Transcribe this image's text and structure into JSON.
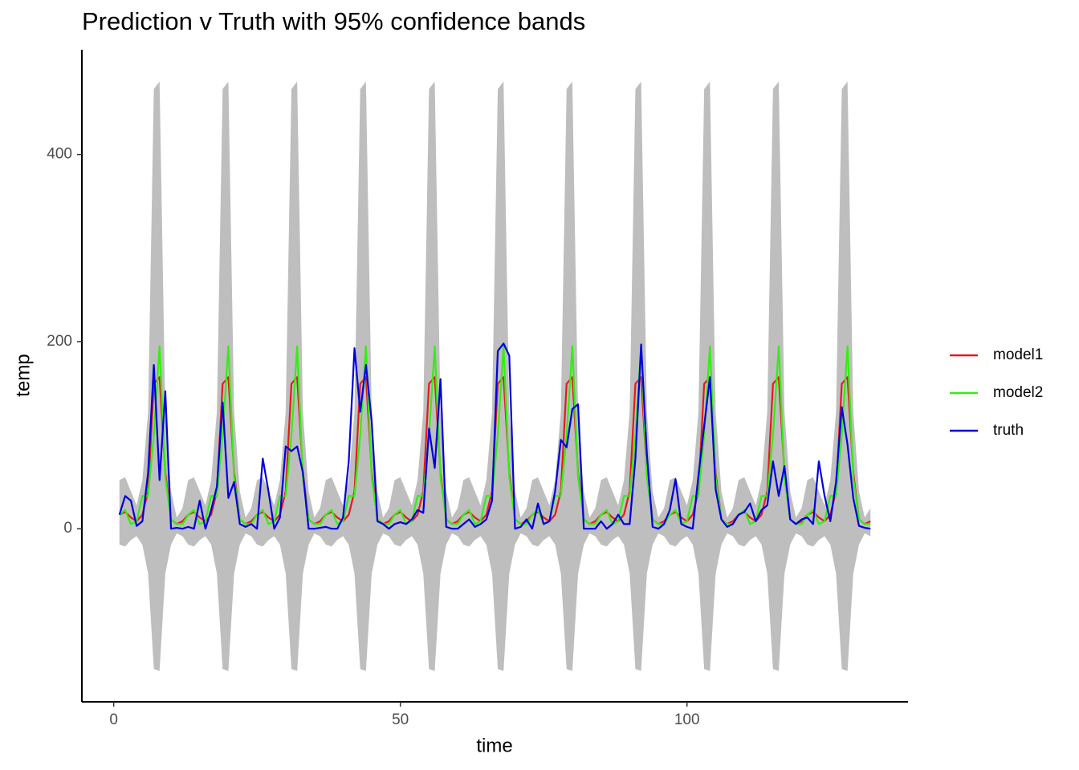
{
  "chart_data": {
    "type": "line",
    "title": "Prediction v Truth with 95% confidence bands",
    "x_label": "time",
    "y_label": "temp",
    "xlim": [
      -5.55,
      138.55
    ],
    "ylim": [
      -185,
      512
    ],
    "xticks": [
      0,
      50,
      100
    ],
    "yticks": [
      0,
      200,
      400
    ],
    "grid": false,
    "legend": "right",
    "x": [
      1,
      2,
      3,
      4,
      5,
      6,
      7,
      8,
      9,
      10,
      11,
      12,
      13,
      14,
      15,
      16,
      17,
      18,
      19,
      20,
      21,
      22,
      23,
      24,
      25,
      26,
      27,
      28,
      29,
      30,
      31,
      32,
      33,
      34,
      35,
      36,
      37,
      38,
      39,
      40,
      41,
      42,
      43,
      44,
      45,
      46,
      47,
      48,
      49,
      50,
      51,
      52,
      53,
      54,
      55,
      56,
      57,
      58,
      59,
      60,
      61,
      62,
      63,
      64,
      65,
      66,
      67,
      68,
      69,
      70,
      71,
      72,
      73,
      74,
      75,
      76,
      77,
      78,
      79,
      80,
      81,
      82,
      83,
      84,
      85,
      86,
      87,
      88,
      89,
      90,
      91,
      92,
      93,
      94,
      95,
      96,
      97,
      98,
      99,
      100,
      101,
      102,
      103,
      104,
      105,
      106,
      107,
      108,
      109,
      110,
      111,
      112,
      113,
      114,
      115,
      116,
      117,
      118,
      119,
      120,
      121,
      122,
      123,
      124,
      125,
      126,
      127,
      128,
      129,
      130,
      131,
      132
    ],
    "band": {
      "color": "#bebebe",
      "upper": [
        52,
        55,
        40,
        25,
        52,
        125,
        470,
        478,
        125,
        40,
        12,
        22,
        52,
        55,
        40,
        25,
        52,
        125,
        470,
        478,
        125,
        40,
        12,
        22,
        52,
        55,
        40,
        25,
        52,
        125,
        470,
        478,
        125,
        40,
        12,
        22,
        52,
        55,
        40,
        25,
        52,
        125,
        470,
        478,
        125,
        40,
        12,
        22,
        52,
        55,
        40,
        25,
        52,
        125,
        470,
        478,
        125,
        40,
        12,
        22,
        52,
        55,
        40,
        25,
        52,
        125,
        470,
        478,
        125,
        40,
        12,
        22,
        52,
        55,
        40,
        25,
        52,
        125,
        470,
        478,
        125,
        40,
        12,
        22,
        52,
        55,
        40,
        25,
        52,
        125,
        470,
        478,
        125,
        40,
        12,
        22,
        52,
        55,
        40,
        25,
        52,
        125,
        470,
        478,
        125,
        40,
        12,
        22,
        52,
        55,
        40,
        25,
        52,
        125,
        470,
        478,
        125,
        40,
        12,
        22,
        52,
        55,
        40,
        25,
        52,
        125,
        470,
        478,
        125,
        40,
        12,
        22
      ],
      "lower": [
        -17,
        -19,
        -12,
        -8,
        -17,
        -48,
        -150,
        -152,
        -48,
        -17,
        -5,
        -8,
        -17,
        -19,
        -12,
        -8,
        -17,
        -48,
        -150,
        -152,
        -48,
        -17,
        -5,
        -8,
        -17,
        -19,
        -12,
        -8,
        -17,
        -48,
        -150,
        -152,
        -48,
        -17,
        -5,
        -8,
        -17,
        -19,
        -12,
        -8,
        -17,
        -48,
        -150,
        -152,
        -48,
        -17,
        -5,
        -8,
        -17,
        -19,
        -12,
        -8,
        -17,
        -48,
        -150,
        -152,
        -48,
        -17,
        -5,
        -8,
        -17,
        -19,
        -12,
        -8,
        -17,
        -48,
        -150,
        -152,
        -48,
        -17,
        -5,
        -8,
        -17,
        -19,
        -12,
        -8,
        -17,
        -48,
        -150,
        -152,
        -48,
        -17,
        -5,
        -8,
        -17,
        -19,
        -12,
        -8,
        -17,
        -48,
        -150,
        -152,
        -48,
        -17,
        -5,
        -8,
        -17,
        -19,
        -12,
        -8,
        -17,
        -48,
        -150,
        -152,
        -48,
        -17,
        -5,
        -8,
        -17,
        -19,
        -12,
        -8,
        -17,
        -48,
        -150,
        -152,
        -48,
        -17,
        -5,
        -8,
        -17,
        -19,
        -12,
        -8,
        -17,
        -48,
        -150,
        -152,
        -48,
        -17,
        -5,
        -8
      ]
    },
    "series": [
      {
        "name": "model1",
        "color": "#e41a1c",
        "values": [
          15,
          18,
          12,
          8,
          15,
          40,
          155,
          162,
          60,
          10,
          5,
          8,
          15,
          18,
          12,
          8,
          15,
          40,
          155,
          162,
          60,
          10,
          5,
          8,
          15,
          18,
          12,
          8,
          15,
          40,
          155,
          162,
          60,
          10,
          5,
          8,
          15,
          18,
          12,
          8,
          15,
          40,
          155,
          162,
          60,
          10,
          5,
          8,
          15,
          18,
          12,
          8,
          15,
          40,
          155,
          162,
          60,
          10,
          5,
          8,
          15,
          18,
          12,
          8,
          15,
          40,
          155,
          162,
          60,
          10,
          5,
          8,
          15,
          18,
          12,
          8,
          15,
          40,
          155,
          162,
          60,
          10,
          5,
          8,
          15,
          18,
          12,
          8,
          15,
          40,
          155,
          162,
          60,
          10,
          5,
          8,
          15,
          18,
          12,
          8,
          15,
          40,
          155,
          162,
          60,
          10,
          5,
          8,
          15,
          18,
          12,
          8,
          15,
          40,
          155,
          162,
          60,
          10,
          5,
          8,
          15,
          18,
          12,
          8,
          15,
          40,
          155,
          162,
          60,
          10,
          5,
          8
        ]
      },
      {
        "name": "model2",
        "color": "#33ee11",
        "values": [
          15,
          20,
          5,
          8,
          35,
          35,
          100,
          195,
          55,
          10,
          5,
          5,
          15,
          20,
          5,
          8,
          35,
          35,
          100,
          195,
          55,
          10,
          5,
          5,
          15,
          20,
          5,
          8,
          35,
          35,
          100,
          195,
          55,
          10,
          5,
          5,
          15,
          20,
          5,
          8,
          35,
          35,
          100,
          195,
          55,
          10,
          5,
          5,
          15,
          20,
          5,
          8,
          35,
          35,
          100,
          195,
          55,
          10,
          5,
          5,
          15,
          20,
          5,
          8,
          35,
          35,
          100,
          195,
          55,
          10,
          5,
          5,
          15,
          20,
          5,
          8,
          35,
          35,
          100,
          195,
          55,
          10,
          5,
          5,
          15,
          20,
          5,
          8,
          35,
          35,
          100,
          195,
          55,
          10,
          5,
          5,
          15,
          20,
          5,
          8,
          35,
          35,
          100,
          195,
          55,
          10,
          5,
          5,
          15,
          20,
          5,
          8,
          35,
          35,
          100,
          195,
          55,
          10,
          5,
          5,
          15,
          20,
          5,
          8,
          35,
          35,
          100,
          195,
          55,
          10,
          5,
          5
        ]
      },
      {
        "name": "truth",
        "color": "#0000dd",
        "values": [
          15,
          35,
          30,
          3,
          8,
          60,
          175,
          52,
          147,
          0,
          1,
          0,
          2,
          0,
          30,
          0,
          20,
          45,
          135,
          33,
          50,
          5,
          2,
          5,
          0,
          75,
          40,
          0,
          12,
          88,
          83,
          88,
          60,
          0,
          0,
          1,
          2,
          0,
          0,
          12,
          72,
          193,
          125,
          175,
          115,
          8,
          5,
          0,
          5,
          7,
          5,
          10,
          20,
          17,
          107,
          65,
          160,
          2,
          0,
          0,
          5,
          10,
          2,
          5,
          10,
          30,
          190,
          198,
          185,
          0,
          2,
          10,
          0,
          27,
          5,
          8,
          40,
          95,
          87,
          128,
          133,
          0,
          0,
          0,
          8,
          0,
          5,
          15,
          5,
          5,
          75,
          197,
          80,
          2,
          0,
          5,
          20,
          53,
          5,
          2,
          0,
          57,
          110,
          162,
          42,
          10,
          2,
          5,
          15,
          18,
          27,
          8,
          20,
          25,
          72,
          35,
          67,
          10,
          5,
          10,
          12,
          5,
          72,
          35,
          8,
          50,
          130,
          90,
          33,
          3,
          1,
          0
        ]
      }
    ]
  }
}
